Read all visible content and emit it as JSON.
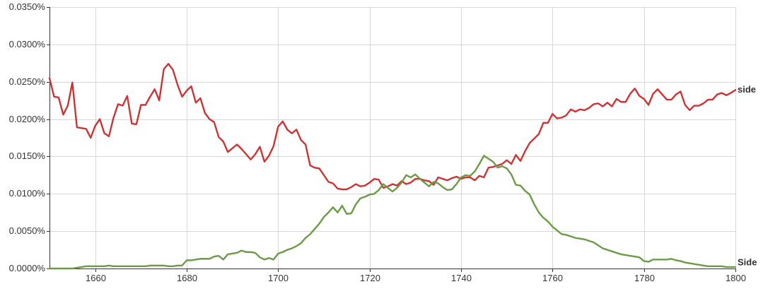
{
  "chart_data": {
    "type": "line",
    "title": "",
    "xlabel": "",
    "ylabel": "",
    "xlim": [
      1650,
      1800
    ],
    "ylim": [
      0,
      0.035
    ],
    "grid": true,
    "legend": "inline-right",
    "x_ticks": [
      1660,
      1680,
      1700,
      1720,
      1740,
      1760,
      1780,
      1800
    ],
    "x_tick_labels": [
      "1660",
      "1680",
      "1700",
      "1720",
      "1740",
      "1760",
      "1780",
      "1800"
    ],
    "y_ticks": [
      0,
      0.005,
      0.01,
      0.015,
      0.02,
      0.025,
      0.03,
      0.035
    ],
    "y_tick_labels": [
      "0.0000%",
      "0.0050%",
      "0.0100%",
      "0.0150%",
      "0.0200%",
      "0.0250%",
      "0.0300%",
      "0.0350%"
    ],
    "series": [
      {
        "name": "side",
        "color": "#cc3333",
        "x": [
          1650,
          1651,
          1652,
          1653,
          1654,
          1655,
          1656,
          1657,
          1658,
          1659,
          1660,
          1661,
          1662,
          1663,
          1664,
          1665,
          1666,
          1667,
          1668,
          1669,
          1670,
          1671,
          1672,
          1673,
          1674,
          1675,
          1676,
          1677,
          1678,
          1679,
          1680,
          1681,
          1682,
          1683,
          1684,
          1685,
          1686,
          1687,
          1688,
          1689,
          1690,
          1691,
          1692,
          1693,
          1694,
          1695,
          1696,
          1697,
          1698,
          1699,
          1700,
          1701,
          1702,
          1703,
          1704,
          1705,
          1706,
          1707,
          1708,
          1709,
          1710,
          1711,
          1712,
          1713,
          1714,
          1715,
          1716,
          1717,
          1718,
          1719,
          1720,
          1721,
          1722,
          1723,
          1724,
          1725,
          1726,
          1727,
          1728,
          1729,
          1730,
          1731,
          1732,
          1733,
          1734,
          1735,
          1736,
          1737,
          1738,
          1739,
          1740,
          1741,
          1742,
          1743,
          1744,
          1745,
          1746,
          1747,
          1748,
          1749,
          1750,
          1751,
          1752,
          1753,
          1754,
          1755,
          1756,
          1757,
          1758,
          1759,
          1760,
          1761,
          1762,
          1763,
          1764,
          1765,
          1766,
          1767,
          1768,
          1769,
          1770,
          1771,
          1772,
          1773,
          1774,
          1775,
          1776,
          1777,
          1778,
          1779,
          1780,
          1781,
          1782,
          1783,
          1784,
          1785,
          1786,
          1787,
          1788,
          1789,
          1790,
          1791,
          1792,
          1793,
          1794,
          1795,
          1796,
          1797,
          1798,
          1799,
          1800
        ],
        "y": [
          0.0255,
          0.023,
          0.0229,
          0.0206,
          0.0218,
          0.0249,
          0.0189,
          0.0188,
          0.0187,
          0.0175,
          0.0191,
          0.02,
          0.0181,
          0.0177,
          0.0202,
          0.022,
          0.0218,
          0.0231,
          0.0194,
          0.0193,
          0.0219,
          0.0219,
          0.023,
          0.024,
          0.0225,
          0.0267,
          0.0274,
          0.0266,
          0.0246,
          0.023,
          0.0238,
          0.0244,
          0.0222,
          0.0228,
          0.0208,
          0.02,
          0.0196,
          0.0176,
          0.017,
          0.0156,
          0.0161,
          0.0166,
          0.016,
          0.0153,
          0.0146,
          0.0153,
          0.0163,
          0.0143,
          0.0151,
          0.0164,
          0.019,
          0.0197,
          0.0186,
          0.0181,
          0.0186,
          0.0172,
          0.0166,
          0.0138,
          0.0135,
          0.0134,
          0.0125,
          0.0116,
          0.0114,
          0.0107,
          0.0106,
          0.0106,
          0.0109,
          0.0113,
          0.011,
          0.0111,
          0.0115,
          0.012,
          0.0119,
          0.0108,
          0.011,
          0.0113,
          0.0111,
          0.0117,
          0.0113,
          0.0115,
          0.012,
          0.012,
          0.0118,
          0.0117,
          0.0112,
          0.0122,
          0.012,
          0.0118,
          0.0121,
          0.0123,
          0.012,
          0.0122,
          0.0122,
          0.0118,
          0.0124,
          0.0122,
          0.0135,
          0.0136,
          0.0138,
          0.014,
          0.0145,
          0.014,
          0.0152,
          0.0144,
          0.0157,
          0.0168,
          0.0174,
          0.018,
          0.0195,
          0.0195,
          0.0207,
          0.0201,
          0.0202,
          0.0205,
          0.0213,
          0.021,
          0.0213,
          0.0212,
          0.0215,
          0.022,
          0.0221,
          0.0217,
          0.0222,
          0.0217,
          0.0227,
          0.0223,
          0.0223,
          0.0234,
          0.0241,
          0.0231,
          0.0227,
          0.0219,
          0.0234,
          0.024,
          0.0233,
          0.0226,
          0.0226,
          0.0233,
          0.0237,
          0.0219,
          0.0212,
          0.0218,
          0.0218,
          0.0221,
          0.0226,
          0.0226,
          0.0233,
          0.0235,
          0.0232,
          0.0235,
          0.0239
        ]
      },
      {
        "name": "Side",
        "color": "#6b9b45",
        "x": [
          1650,
          1651,
          1652,
          1653,
          1654,
          1655,
          1656,
          1657,
          1658,
          1659,
          1660,
          1661,
          1662,
          1663,
          1664,
          1665,
          1666,
          1667,
          1668,
          1669,
          1670,
          1671,
          1672,
          1673,
          1674,
          1675,
          1676,
          1677,
          1678,
          1679,
          1680,
          1681,
          1682,
          1683,
          1684,
          1685,
          1686,
          1687,
          1688,
          1689,
          1690,
          1691,
          1692,
          1693,
          1694,
          1695,
          1696,
          1697,
          1698,
          1699,
          1700,
          1701,
          1702,
          1703,
          1704,
          1705,
          1706,
          1707,
          1708,
          1709,
          1710,
          1711,
          1712,
          1713,
          1714,
          1715,
          1716,
          1717,
          1718,
          1719,
          1720,
          1721,
          1722,
          1723,
          1724,
          1725,
          1726,
          1727,
          1728,
          1729,
          1730,
          1731,
          1732,
          1733,
          1734,
          1735,
          1736,
          1737,
          1738,
          1739,
          1740,
          1741,
          1742,
          1743,
          1744,
          1745,
          1746,
          1747,
          1748,
          1749,
          1750,
          1751,
          1752,
          1753,
          1754,
          1755,
          1756,
          1757,
          1758,
          1759,
          1760,
          1761,
          1762,
          1763,
          1764,
          1765,
          1766,
          1767,
          1768,
          1769,
          1770,
          1771,
          1772,
          1773,
          1774,
          1775,
          1776,
          1777,
          1778,
          1779,
          1780,
          1781,
          1782,
          1783,
          1784,
          1785,
          1786,
          1787,
          1788,
          1789,
          1790,
          1791,
          1792,
          1793,
          1794,
          1795,
          1796,
          1797,
          1798,
          1799,
          1800
        ],
        "y": [
          0.0,
          0.0,
          0.0,
          0.0,
          0.0,
          0.0,
          0.0001,
          0.0002,
          0.0003,
          0.0003,
          0.0003,
          0.0003,
          0.0003,
          0.0004,
          0.0003,
          0.0003,
          0.0003,
          0.0003,
          0.0003,
          0.0003,
          0.0003,
          0.0003,
          0.0004,
          0.0004,
          0.0004,
          0.0004,
          0.0003,
          0.0003,
          0.0004,
          0.0004,
          0.0011,
          0.0011,
          0.0012,
          0.0013,
          0.0013,
          0.0013,
          0.0016,
          0.0017,
          0.0012,
          0.0019,
          0.002,
          0.0021,
          0.0024,
          0.0022,
          0.0022,
          0.0021,
          0.0015,
          0.0012,
          0.0014,
          0.0012,
          0.002,
          0.0022,
          0.0025,
          0.0027,
          0.003,
          0.0034,
          0.0041,
          0.0046,
          0.0053,
          0.006,
          0.0069,
          0.0075,
          0.0082,
          0.0075,
          0.0084,
          0.0073,
          0.0074,
          0.0086,
          0.0094,
          0.0096,
          0.0099,
          0.01,
          0.0105,
          0.0113,
          0.0108,
          0.0103,
          0.0108,
          0.0115,
          0.0125,
          0.0122,
          0.0126,
          0.012,
          0.0115,
          0.011,
          0.0116,
          0.0114,
          0.0109,
          0.0105,
          0.0106,
          0.0113,
          0.0122,
          0.0125,
          0.0124,
          0.013,
          0.014,
          0.0151,
          0.0147,
          0.0143,
          0.0135,
          0.0137,
          0.0134,
          0.0126,
          0.0112,
          0.0111,
          0.0104,
          0.0099,
          0.0086,
          0.0075,
          0.0068,
          0.0063,
          0.0056,
          0.0051,
          0.0046,
          0.0045,
          0.0043,
          0.0041,
          0.004,
          0.0039,
          0.0037,
          0.0035,
          0.0031,
          0.0027,
          0.0025,
          0.0023,
          0.0021,
          0.0019,
          0.0018,
          0.0017,
          0.0016,
          0.0015,
          0.001,
          0.0009,
          0.0012,
          0.0012,
          0.0012,
          0.0012,
          0.0013,
          0.0011,
          0.001,
          0.0008,
          0.0007,
          0.0006,
          0.0005,
          0.0004,
          0.0003,
          0.0003,
          0.0003,
          0.0003,
          0.0002,
          0.0002,
          0.0002
        ]
      }
    ]
  }
}
